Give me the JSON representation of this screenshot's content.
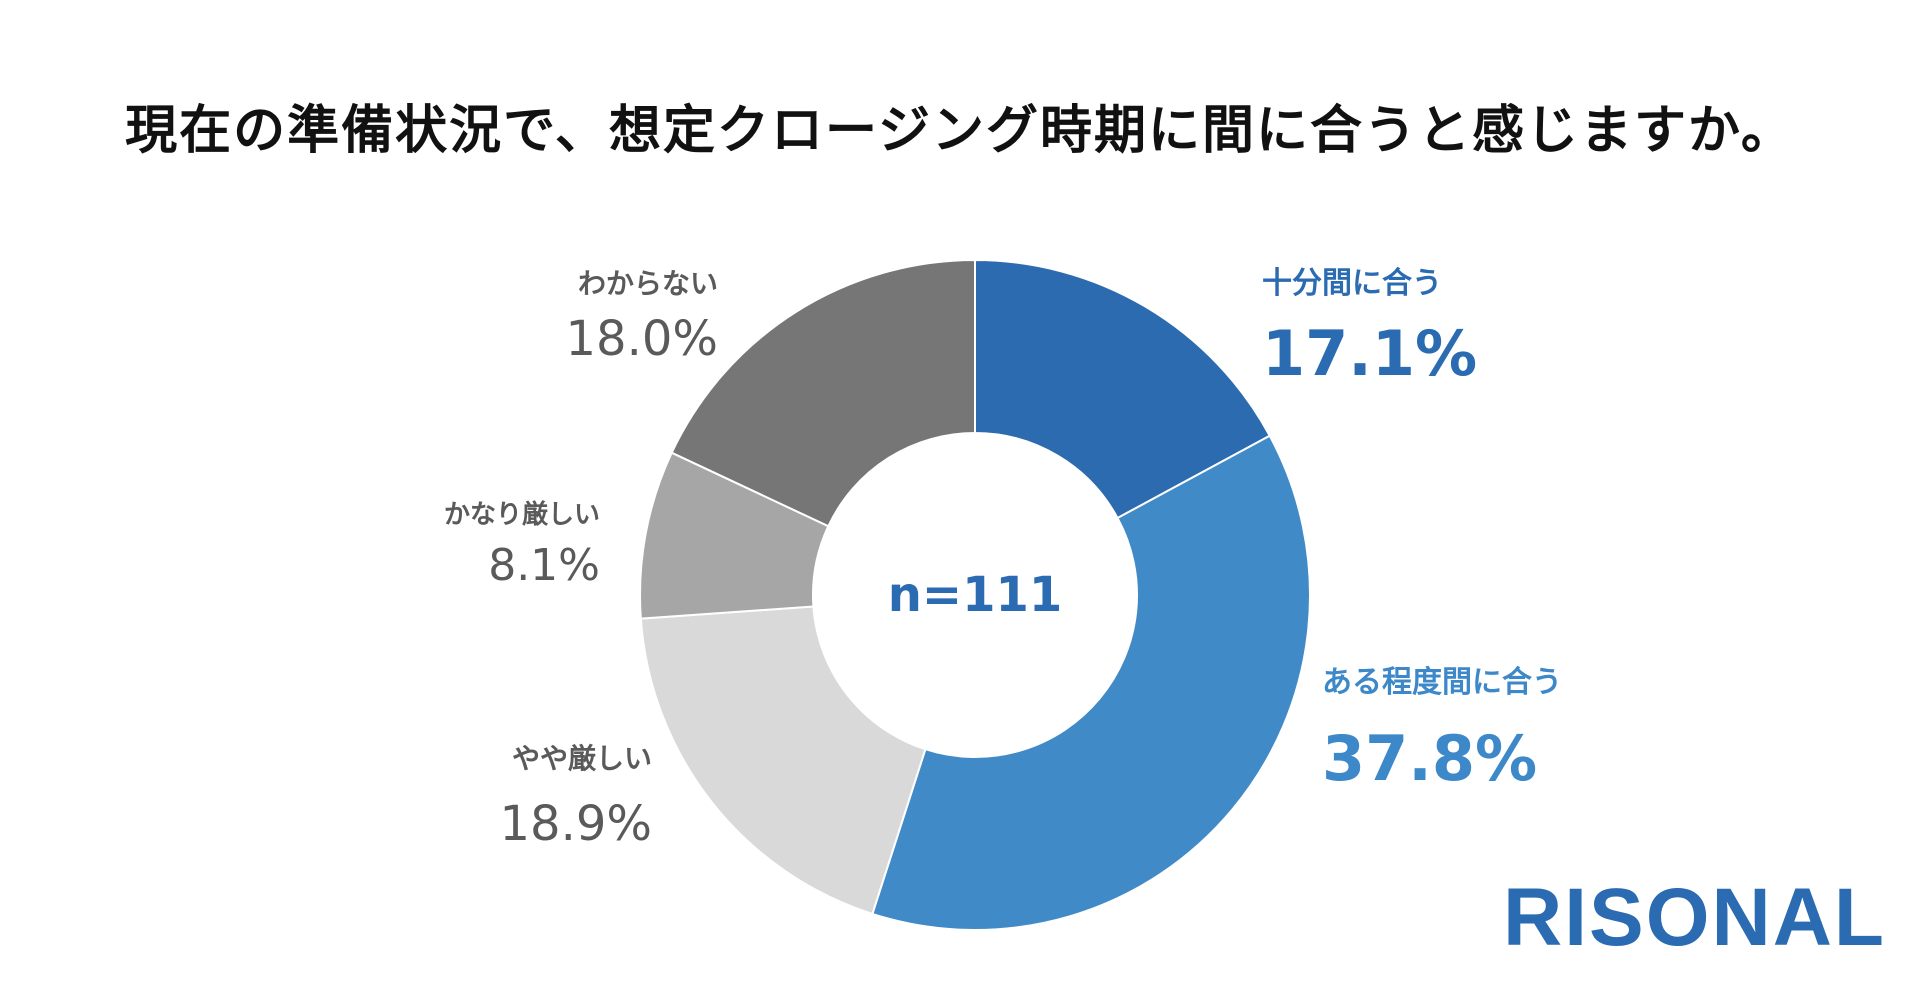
{
  "title": "現在の準備状況で、想定クロージング時期に間に合うと感じますか。",
  "logo_text": "RISONAL",
  "colors": {
    "logo": "#2b6bb1",
    "label_blue_dark": "#2b6bb1",
    "label_blue_light": "#3d88c8",
    "label_gray": "#5a5a5a"
  },
  "chart_data": {
    "type": "pie",
    "donut": true,
    "center_label": "n=111",
    "slices": [
      {
        "label": "十分間に合う",
        "value": 17.1,
        "value_label": "17.1%",
        "color": "#2c6bb0"
      },
      {
        "label": "ある程度間に合う",
        "value": 37.8,
        "value_label": "37.8%",
        "color": "#418ac8"
      },
      {
        "label": "やや厳しい",
        "value": 18.9,
        "value_label": "18.9%",
        "color": "#d9d9d9"
      },
      {
        "label": "かなり厳しい",
        "value": 8.1,
        "value_label": "8.1%",
        "color": "#a6a6a6"
      },
      {
        "label": "わからない",
        "value": 18.0,
        "value_label": "18.0%",
        "color": "#767676"
      }
    ]
  }
}
